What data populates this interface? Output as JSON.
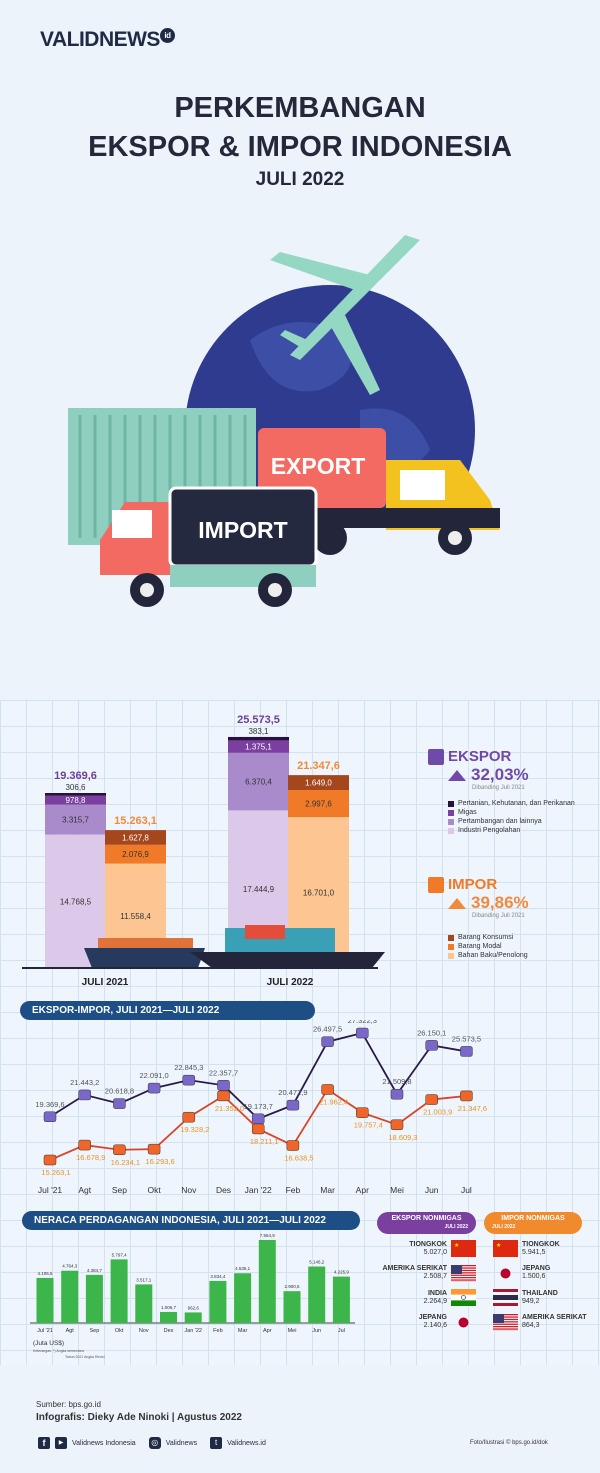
{
  "brand": {
    "name": "VALIDNEWS",
    "suffix": "id"
  },
  "title": {
    "line1": "PERKEMBANGAN",
    "line2": "EKSPOR & IMPOR INDONESIA",
    "line3": "JULI 2022"
  },
  "illustration": {
    "export_label": "EXPORT",
    "import_label": "IMPORT"
  },
  "colors": {
    "ekspor": "#6f4aa8",
    "impor": "#f07a28",
    "navy": "#1d4f86",
    "balance": "#3cb54a"
  },
  "chart_data": [
    {
      "type": "bar",
      "stacked": true,
      "categories": [
        "JULI 2021",
        "JULI 2022"
      ],
      "ekspor": {
        "label": "EKSPOR",
        "change": "32,03%",
        "compare": "Dibanding Juli 2021",
        "totals": [
          "19.369,6",
          "25.573,5"
        ],
        "series": [
          {
            "name": "Industri Pengolahan",
            "values": [
              14768.5,
              17444.9
            ],
            "labels": [
              "14.768,5",
              "17.444,9"
            ],
            "color": "#dcc8e8"
          },
          {
            "name": "Pertambangan dan lainnya",
            "values": [
              3315.7,
              6370.4
            ],
            "labels": [
              "3.315,7",
              "6.370,4"
            ],
            "color": "#a98bcb"
          },
          {
            "name": "Migas",
            "values": [
              978.8,
              1375.1
            ],
            "labels": [
              "978,8",
              "1.375,1"
            ],
            "color": "#7b3fa0"
          },
          {
            "name": "Pertanian, Kehutanan, dan Perikanan",
            "values": [
              306.6,
              383.1
            ],
            "labels": [
              "306,6",
              "383,1"
            ],
            "color": "#2a1040"
          }
        ]
      },
      "impor": {
        "label": "IMPOR",
        "change": "39,86%",
        "compare": "Dibanding Juli 2021",
        "totals": [
          "15.263,1",
          "21.347,6"
        ],
        "series": [
          {
            "name": "Bahan Baku/Penolong",
            "values": [
              11558.4,
              16701.0
            ],
            "labels": [
              "11.558,4",
              "16.701,0"
            ],
            "color": "#fcc592"
          },
          {
            "name": "Barang Modal",
            "values": [
              2076.9,
              2997.6
            ],
            "labels": [
              "2.076,9",
              "2.997,6"
            ],
            "color": "#f07a28"
          },
          {
            "name": "Barang Konsumsi",
            "values": [
              1627.8,
              1649.0
            ],
            "labels": [
              "1.627,8",
              "1.649,0"
            ],
            "color": "#a5471c"
          }
        ]
      }
    },
    {
      "type": "line",
      "title": "EKSPOR-IMPOR, JULI 2021—JULI 2022",
      "categories": [
        "Jul '21",
        "Agt",
        "Sep",
        "Okt",
        "Nov",
        "Des",
        "Jan '22",
        "Feb",
        "Mar",
        "Apr",
        "Mei",
        "Jun",
        "Jul"
      ],
      "series": [
        {
          "name": "Ekspor",
          "values": [
            19369.6,
            21443.2,
            20618.8,
            22091.0,
            22845.3,
            22357.7,
            19173.7,
            20472.9,
            26497.5,
            27322.3,
            21509.8,
            26150.1,
            25573.5
          ],
          "labels": [
            "19.369,6",
            "21.443,2",
            "20.618,8",
            "22.091,0",
            "22.845,3",
            "22.357,7",
            "19.173,7",
            "20.472,9",
            "26.497,5",
            "27.322,3",
            "21.509,8",
            "26.150,1",
            "25.573,5"
          ]
        },
        {
          "name": "Impor",
          "values": [
            15263.1,
            16678.9,
            16234.1,
            16293.6,
            19328.2,
            21352.0,
            18211.1,
            16638.5,
            21962.4,
            19757.4,
            18609.3,
            21003.9,
            21347.6
          ],
          "labels": [
            "15.263,1",
            "16.678,9",
            "16.234,1",
            "16.293,6",
            "19.328,2",
            "21.352,0",
            "18.211,1",
            "16.638,5",
            "21.962,4",
            "19.757,4",
            "18.609,3",
            "21.003,9",
            "21.347,6"
          ]
        }
      ]
    },
    {
      "type": "bar",
      "title": "NERACA PERDAGANGAN INDONESIA, JULI 2021—JULI 2022",
      "unit": "(Juta US$)",
      "note1": "Keterangan: *) Angka sementara",
      "note2": "Tahun 2021 Angka Revisi",
      "categories": [
        "Jul '21",
        "Agt",
        "Sep",
        "Okt",
        "Nov",
        "Des",
        "Jan '22",
        "Feb",
        "Mar",
        "Apr",
        "Mei",
        "Jun",
        "Jul"
      ],
      "values": [
        4106.5,
        4764.3,
        4384.7,
        5797.4,
        3517.1,
        1005.7,
        962.6,
        3834.4,
        4535.1,
        7564.9,
        2900.5,
        5146.2,
        4225.9
      ],
      "labels": [
        "4.106,5",
        "4.764,3",
        "4.384,7",
        "5.797,4",
        "3.517,1",
        "1.005,7",
        "962,6",
        "3.834,4",
        "4.535,1",
        "7.564,9",
        "2.900,5",
        "5.146,2",
        "4.225,9"
      ]
    }
  ],
  "nonmigas": {
    "ekspor": {
      "title": "EKSPOR NONMIGAS",
      "sub": "JULI 2022",
      "rows": [
        {
          "country": "TIONGKOK",
          "value": "5.027,0",
          "flag": "china"
        },
        {
          "country": "AMERIKA SERIKAT",
          "value": "2.508,7",
          "flag": "usa"
        },
        {
          "country": "INDIA",
          "value": "2.264,9",
          "flag": "india"
        },
        {
          "country": "JEPANG",
          "value": "2.140,6",
          "flag": "japan"
        }
      ]
    },
    "impor": {
      "title": "IMPOR NONMIGAS",
      "sub": "JULI 2022",
      "rows": [
        {
          "country": "TIONGKOK",
          "value": "5.941,5",
          "flag": "china"
        },
        {
          "country": "JEPANG",
          "value": "1.500,6",
          "flag": "japan"
        },
        {
          "country": "THAILAND",
          "value": "949,2",
          "flag": "thailand"
        },
        {
          "country": "AMERIKA SERIKAT",
          "value": "864,3",
          "flag": "usa"
        }
      ]
    }
  },
  "footer": {
    "source": "Sumber: bps.go.id",
    "credit": "Infografis: Dieky Ade Ninoki | Agustus 2022",
    "social": [
      {
        "icon": "facebook-youtube-icon",
        "label": "Validnews Indonesia"
      },
      {
        "icon": "instagram-icon",
        "label": "Validnews"
      },
      {
        "icon": "twitter-icon",
        "label": "Validnews.id"
      }
    ],
    "photo": "Foto/Ilustrasi © bps.go.id/dok"
  }
}
